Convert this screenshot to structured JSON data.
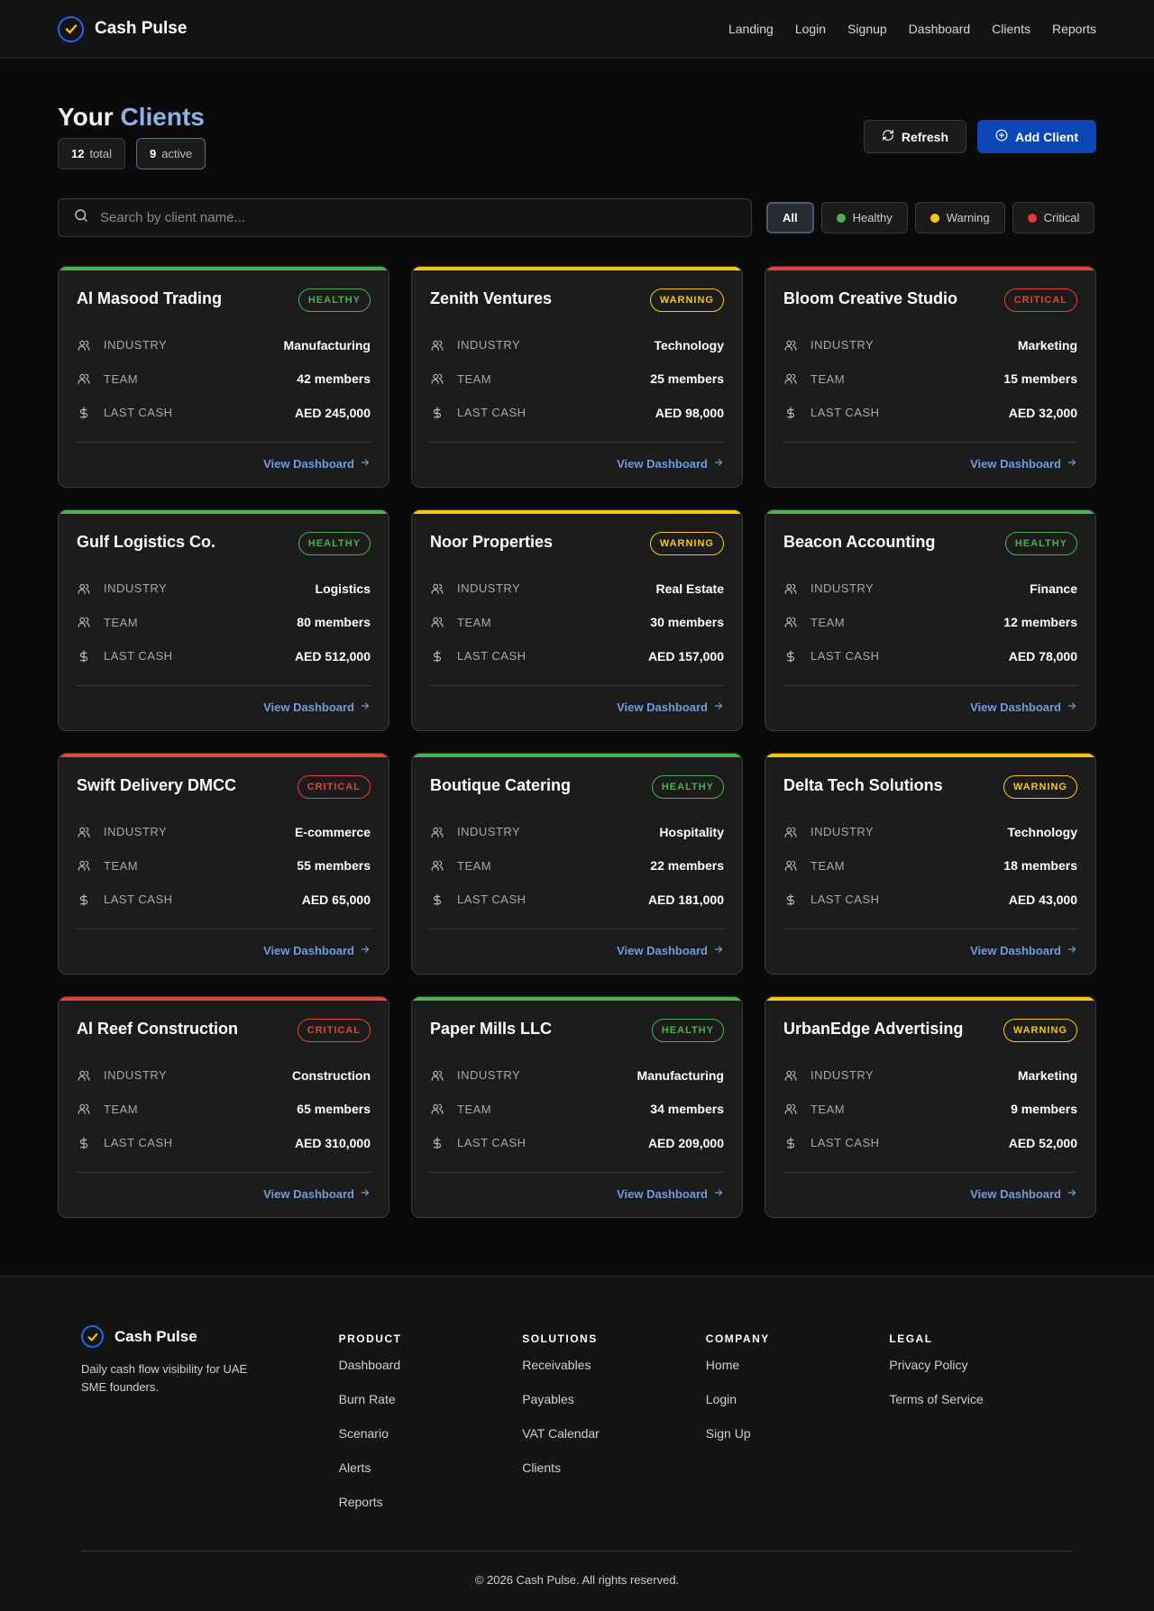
{
  "app": {
    "name": "Cash Pulse",
    "nav": [
      "Landing",
      "Login",
      "Signup",
      "Dashboard",
      "Clients",
      "Reports"
    ]
  },
  "header": {
    "title_prefix": "Your",
    "title_accent": "Clients",
    "stats": {
      "total_count": "12",
      "total_label": "total",
      "active_count": "9",
      "active_label": "active"
    },
    "refresh_label": "Refresh",
    "add_label": "Add Client"
  },
  "search": {
    "placeholder": "Search by client name..."
  },
  "filters": [
    {
      "label": "All",
      "color": ""
    },
    {
      "label": "Healthy",
      "color": "#4caf50"
    },
    {
      "label": "Warning",
      "color": "#f5c518"
    },
    {
      "label": "Critical",
      "color": "#e53935"
    }
  ],
  "status_colors": {
    "HEALTHY": "#4caf50",
    "WARNING": "#f5c518",
    "CRITICAL": "#e0443a"
  },
  "card_labels": {
    "industry": "INDUSTRY",
    "team": "TEAM",
    "last_cash": "LAST CASH",
    "link": "View Dashboard"
  },
  "clients": [
    {
      "name": "Al Masood Trading",
      "status": "HEALTHY",
      "industry": "Manufacturing",
      "team": "42 members",
      "last_cash": "AED 245,000"
    },
    {
      "name": "Zenith Ventures",
      "status": "WARNING",
      "industry": "Technology",
      "team": "25 members",
      "last_cash": "AED 98,000"
    },
    {
      "name": "Bloom Creative Studio",
      "status": "CRITICAL",
      "industry": "Marketing",
      "team": "15 members",
      "last_cash": "AED 32,000"
    },
    {
      "name": "Gulf Logistics Co.",
      "status": "HEALTHY",
      "industry": "Logistics",
      "team": "80 members",
      "last_cash": "AED 512,000"
    },
    {
      "name": "Noor Properties",
      "status": "WARNING",
      "industry": "Real Estate",
      "team": "30 members",
      "last_cash": "AED 157,000"
    },
    {
      "name": "Beacon Accounting",
      "status": "HEALTHY",
      "industry": "Finance",
      "team": "12 members",
      "last_cash": "AED 78,000"
    },
    {
      "name": "Swift Delivery DMCC",
      "status": "CRITICAL",
      "industry": "E-commerce",
      "team": "55 members",
      "last_cash": "AED 65,000"
    },
    {
      "name": "Boutique Catering",
      "status": "HEALTHY",
      "industry": "Hospitality",
      "team": "22 members",
      "last_cash": "AED 181,000"
    },
    {
      "name": "Delta Tech Solutions",
      "status": "WARNING",
      "industry": "Technology",
      "team": "18 members",
      "last_cash": "AED 43,000"
    },
    {
      "name": "Al Reef Construction",
      "status": "CRITICAL",
      "industry": "Construction",
      "team": "65 members",
      "last_cash": "AED 310,000"
    },
    {
      "name": "Paper Mills LLC",
      "status": "HEALTHY",
      "industry": "Manufacturing",
      "team": "34 members",
      "last_cash": "AED 209,000"
    },
    {
      "name": "UrbanEdge Advertising",
      "status": "WARNING",
      "industry": "Marketing",
      "team": "9 members",
      "last_cash": "AED 52,000"
    }
  ],
  "footer": {
    "brand": "Cash Pulse",
    "tagline": "Daily cash flow visibility for UAE SME founders.",
    "columns": [
      {
        "title": "PRODUCT",
        "links": [
          "Dashboard",
          "Burn Rate",
          "Scenario",
          "Alerts",
          "Reports"
        ]
      },
      {
        "title": "SOLUTIONS",
        "links": [
          "Receivables",
          "Payables",
          "VAT Calendar",
          "Clients"
        ]
      },
      {
        "title": "COMPANY",
        "links": [
          "Home",
          "Login",
          "Sign Up"
        ]
      },
      {
        "title": "LEGAL",
        "links": [
          "Privacy Policy",
          "Terms of Service"
        ]
      }
    ],
    "copyright": "© 2026 Cash Pulse. All rights reserved."
  },
  "colors": {
    "accent": "#0d47b6",
    "link": "#6f9be0",
    "title_accent": "#8fb0e8"
  }
}
